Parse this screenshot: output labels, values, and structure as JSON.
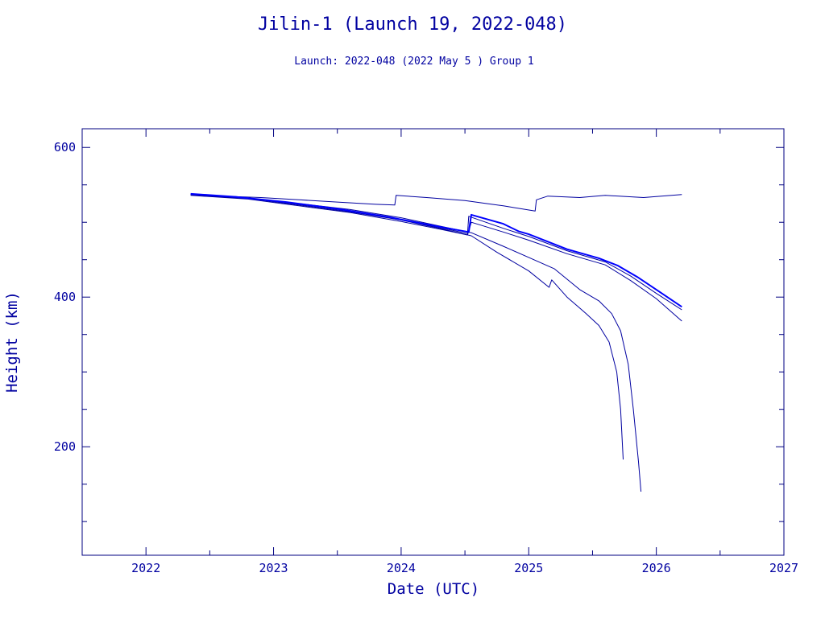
{
  "chart_data": {
    "type": "line",
    "title": "Jilin-1 (Launch 19, 2022-048)",
    "subtitle": "Launch: 2022-048  (2022 May  5 )  Group 1",
    "xlabel": "Date (UTC)",
    "ylabel": "Height (km)",
    "xlim": [
      2021.5,
      2027.0
    ],
    "ylim": [
      55,
      625
    ],
    "x_ticks": [
      2022,
      2023,
      2024,
      2025,
      2026,
      2027
    ],
    "y_ticks": [
      200,
      400,
      600
    ],
    "grid": false,
    "colors": {
      "axes": "#000080",
      "series": "#0000a0",
      "highlight": "#0000ff"
    },
    "series": [
      {
        "x": [
          2022.35,
          2022.6,
          2022.9,
          2023.2,
          2023.5,
          2023.8,
          2023.95,
          2023.96,
          2024.2,
          2024.5,
          2024.8,
          2025.05,
          2025.06,
          2025.15,
          2025.4,
          2025.6,
          2025.9,
          2026.2
        ],
        "y": [
          537,
          535,
          533,
          530,
          527,
          524,
          523,
          536,
          533,
          529,
          522,
          515,
          530,
          535,
          533,
          536,
          533,
          537
        ]
      },
      {
        "x": [
          2022.35,
          2022.8,
          2023.2,
          2023.6,
          2024.0,
          2024.3,
          2024.52,
          2024.53,
          2024.8,
          2025.0,
          2025.3,
          2025.6,
          2025.8,
          2026.0,
          2026.2
        ],
        "y": [
          537,
          532,
          523,
          514,
          503,
          493,
          485,
          508,
          492,
          481,
          462,
          447,
          428,
          405,
          383
        ]
      },
      {
        "x": [
          2022.35,
          2022.8,
          2023.2,
          2023.6,
          2024.0,
          2024.3,
          2024.52,
          2024.55,
          2024.8,
          2025.0,
          2025.3,
          2025.6,
          2025.8,
          2026.0,
          2026.2
        ],
        "y": [
          536,
          531,
          522,
          513,
          501,
          491,
          483,
          500,
          487,
          476,
          458,
          443,
          422,
          398,
          368
        ]
      },
      {
        "x": [
          2022.35,
          2022.8,
          2023.2,
          2023.6,
          2024.0,
          2024.3,
          2024.55,
          2024.8,
          2025.0,
          2025.2,
          2025.4,
          2025.55,
          2025.65,
          2025.72,
          2025.78,
          2025.82,
          2025.86,
          2025.88
        ],
        "y": [
          537,
          532,
          525,
          517,
          506,
          495,
          486,
          468,
          453,
          438,
          410,
          395,
          378,
          355,
          310,
          250,
          180,
          140
        ]
      },
      {
        "x": [
          2022.35,
          2022.8,
          2023.2,
          2023.6,
          2024.0,
          2024.3,
          2024.55,
          2024.75,
          2025.0,
          2025.16,
          2025.18,
          2025.3,
          2025.45,
          2025.55,
          2025.63,
          2025.69,
          2025.72,
          2025.74
        ],
        "y": [
          537,
          532,
          524,
          515,
          503,
          492,
          482,
          460,
          435,
          413,
          423,
          400,
          378,
          362,
          340,
          300,
          250,
          183
        ]
      },
      {
        "x": [
          2022.35,
          2022.7,
          2023.1,
          2023.5,
          2023.9,
          2024.3,
          2024.53,
          2024.55,
          2024.8,
          2024.92,
          2025.0,
          2025.3,
          2025.55,
          2025.7,
          2025.85,
          2026.0,
          2026.2
        ],
        "y": [
          538,
          534,
          527,
          518,
          507,
          494,
          487,
          510,
          498,
          488,
          484,
          464,
          452,
          442,
          427,
          410,
          387
        ],
        "emphasis": true
      }
    ]
  }
}
